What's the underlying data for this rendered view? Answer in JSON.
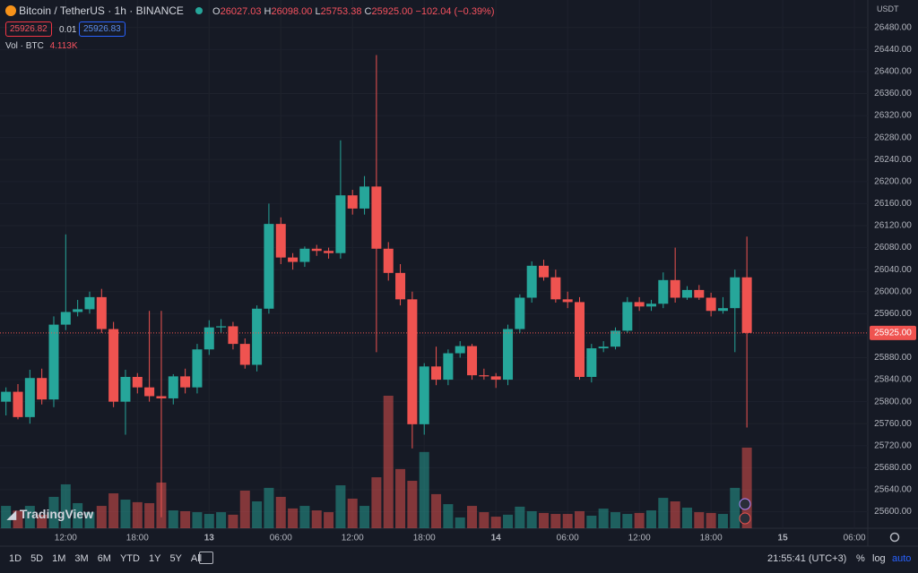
{
  "chart_data": {
    "type": "candlestick",
    "symbol": "Bitcoin / TetherUS · 1h · BINANCE",
    "ohlc_header": {
      "o_label": "O",
      "open": "26027.03",
      "h_label": "H",
      "high": "26098.00",
      "l_label": "L",
      "low": "25753.38",
      "c_label": "C",
      "close": "25925.00",
      "change": "−102.04 (−0.39%)"
    },
    "bid": "25926.82",
    "spread": "0.01",
    "ask": "25926.83",
    "volume_label": "Vol · BTC",
    "volume_value_label": "4.113K",
    "currency": "USDT",
    "logo": "TradingView",
    "time_label": "21:55:41 (UTC+3)",
    "toolbar": {
      "ranges": [
        "1D",
        "5D",
        "1M",
        "3M",
        "6M",
        "YTD",
        "1Y",
        "5Y",
        "All"
      ],
      "percent": "%",
      "log": "log",
      "auto": "auto"
    },
    "categories": [
      null,
      null,
      null,
      null,
      null,
      "12:00",
      null,
      null,
      null,
      null,
      null,
      "18:00",
      null,
      null,
      null,
      null,
      null,
      "13",
      null,
      null,
      null,
      null,
      null,
      "06:00",
      null,
      null,
      null,
      null,
      null,
      "12:00",
      null,
      null,
      null,
      null,
      null,
      "18:00",
      null,
      null,
      null,
      null,
      null,
      "14",
      null,
      null,
      null,
      null,
      null,
      "06:00",
      null,
      null,
      null,
      null,
      null,
      "12:00",
      null,
      null,
      null,
      null,
      null,
      "18:00",
      null,
      null,
      null,
      null,
      null,
      "15",
      null,
      null,
      null,
      null,
      null,
      "06:00"
    ],
    "open": [
      25800,
      25818,
      25772,
      25843,
      25804,
      25940,
      25963,
      25968,
      25990,
      25932,
      25800,
      25845,
      25826,
      25810,
      25806,
      25846,
      25826,
      25895,
      25935,
      25937,
      25905,
      25867,
      25969,
      26123,
      26062,
      26054,
      26078,
      26074,
      26070,
      26175,
      26151,
      26191,
      26078,
      26034,
      25986,
      25759,
      25864,
      25840,
      25888,
      25901,
      25848,
      25846,
      25840,
      25932,
      25989,
      26047,
      26026,
      25986,
      25981,
      25845,
      25897,
      25900,
      25929,
      25981,
      25973,
      25978,
      26021,
      25989,
      26003,
      25989,
      25965,
      25970,
      26026,
      null,
      null,
      null,
      null,
      null,
      null,
      null,
      null,
      null
    ],
    "high": [
      25826,
      25832,
      25858,
      25860,
      25955,
      26104,
      25985,
      26000,
      26005,
      25945,
      25858,
      25852,
      25965,
      25965,
      25850,
      25860,
      25905,
      25948,
      25950,
      25945,
      25915,
      25975,
      26160,
      26135,
      26070,
      26082,
      26085,
      26080,
      26275,
      26185,
      26210,
      26430,
      26090,
      26050,
      26000,
      25870,
      25900,
      25895,
      25910,
      25905,
      25860,
      25852,
      25940,
      25995,
      26055,
      26058,
      26040,
      26000,
      25990,
      25905,
      25910,
      25935,
      25990,
      25990,
      25985,
      26035,
      26080,
      26010,
      26012,
      25998,
      25990,
      26040,
      26100,
      null,
      null,
      null,
      null,
      null,
      null,
      null,
      null,
      null
    ],
    "low": [
      25775,
      25768,
      25760,
      25795,
      25790,
      25930,
      25955,
      25960,
      25925,
      25790,
      25740,
      25815,
      25800,
      25590,
      25795,
      25815,
      25815,
      25885,
      25925,
      25895,
      25860,
      25855,
      25960,
      26050,
      26040,
      26045,
      26065,
      26060,
      26060,
      26140,
      26140,
      25890,
      26020,
      25975,
      25715,
      25740,
      25830,
      25830,
      25880,
      25840,
      25840,
      25825,
      25830,
      25925,
      25980,
      26020,
      25980,
      25970,
      25840,
      25835,
      25890,
      25895,
      25925,
      25965,
      25965,
      25970,
      25980,
      25985,
      25985,
      25955,
      25960,
      25890,
      25753,
      null,
      null,
      null,
      null,
      null,
      null,
      null,
      null,
      null
    ],
    "close": [
      25818,
      25772,
      25843,
      25804,
      25940,
      25963,
      25968,
      25990,
      25932,
      25800,
      25845,
      25826,
      25810,
      25806,
      25846,
      25826,
      25895,
      25935,
      25937,
      25905,
      25867,
      25969,
      26123,
      26062,
      26054,
      26078,
      26074,
      26070,
      26175,
      26151,
      26191,
      26078,
      26034,
      25986,
      25759,
      25864,
      25840,
      25888,
      25901,
      25848,
      25846,
      25840,
      25932,
      25989,
      26047,
      26026,
      25986,
      25981,
      25845,
      25897,
      25900,
      25929,
      25981,
      25973,
      25978,
      26021,
      25989,
      26003,
      25989,
      25965,
      25970,
      26026,
      25925,
      null,
      null,
      null,
      null,
      null,
      null,
      null,
      null,
      null
    ],
    "volume": [
      1140,
      900,
      1140,
      690,
      1600,
      2240,
      1280,
      820,
      1140,
      1780,
      1460,
      1330,
      1280,
      2330,
      910,
      870,
      820,
      730,
      820,
      690,
      1920,
      1370,
      2060,
      1600,
      1010,
      1140,
      910,
      820,
      2190,
      1510,
      1140,
      2600,
      6760,
      3020,
      2420,
      3890,
      1740,
      1230,
      550,
      1140,
      820,
      590,
      690,
      1100,
      870,
      780,
      730,
      730,
      870,
      640,
      1000,
      820,
      730,
      780,
      910,
      1550,
      1370,
      1050,
      820,
      780,
      730,
      2060,
      4113,
      null,
      null,
      null,
      null,
      null,
      null,
      null,
      null,
      null
    ],
    "up_color": "#26a69a",
    "down_color": "#ef5350",
    "ylim": [
      25570,
      26530
    ],
    "yticks": [
      {
        "value": 26480,
        "label": "26480.00"
      },
      {
        "value": 26440,
        "label": "26440.00"
      },
      {
        "value": 26400,
        "label": "26400.00"
      },
      {
        "value": 26360,
        "label": "26360.00"
      },
      {
        "value": 26320,
        "label": "26320.00"
      },
      {
        "value": 26280,
        "label": "26280.00"
      },
      {
        "value": 26240,
        "label": "26240.00"
      },
      {
        "value": 26200,
        "label": "26200.00"
      },
      {
        "value": 26160,
        "label": "26160.00"
      },
      {
        "value": 26120,
        "label": "26120.00"
      },
      {
        "value": 26080,
        "label": "26080.00"
      },
      {
        "value": 26040,
        "label": "26040.00"
      },
      {
        "value": 26000,
        "label": "26000.00"
      },
      {
        "value": 25960,
        "label": "25960.00"
      },
      {
        "value": 25920,
        "label": "25920.00"
      },
      {
        "value": 25880,
        "label": "25880.00"
      },
      {
        "value": 25840,
        "label": "25840.00"
      },
      {
        "value": 25800,
        "label": "25800.00"
      },
      {
        "value": 25760,
        "label": "25760.00"
      },
      {
        "value": 25720,
        "label": "25720.00"
      },
      {
        "value": 25680,
        "label": "25680.00"
      },
      {
        "value": 25640,
        "label": "25640.00"
      },
      {
        "value": 25600,
        "label": "25600.00"
      }
    ],
    "grid": true
  }
}
